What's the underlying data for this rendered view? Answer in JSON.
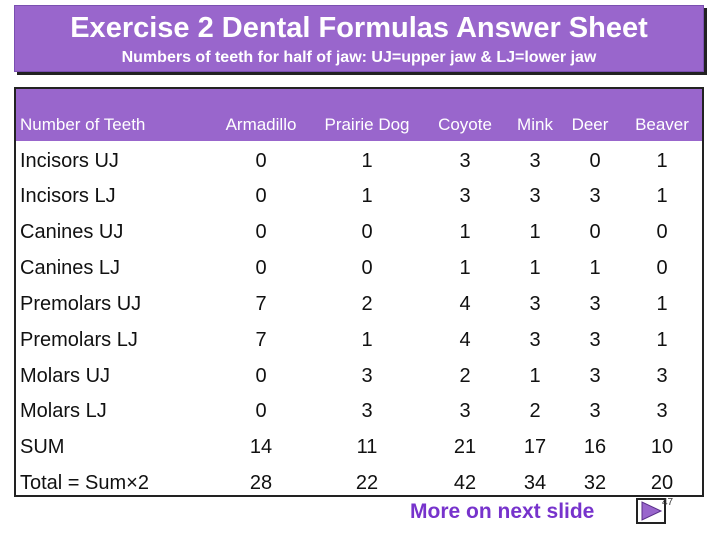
{
  "header": {
    "title": "Exercise 2 Dental Formulas Answer Sheet",
    "subtitle": "Numbers of teeth for half of jaw: UJ=upper jaw & LJ=lower jaw"
  },
  "table": {
    "columns": [
      "Number of Teeth",
      "Armadillo",
      "Prairie Dog",
      "Coyote",
      "Mink",
      "Deer",
      "Beaver"
    ],
    "rows": [
      {
        "label": "Incisors UJ",
        "values": [
          "0",
          "1",
          "3",
          "3",
          "0",
          "1"
        ]
      },
      {
        "label": "Incisors LJ",
        "values": [
          "0",
          "1",
          "3",
          "3",
          "3",
          "1"
        ]
      },
      {
        "label": "Canines UJ",
        "values": [
          "0",
          "0",
          "1",
          "1",
          "0",
          "0"
        ]
      },
      {
        "label": "Canines LJ",
        "values": [
          "0",
          "0",
          "1",
          "1",
          "1",
          "0"
        ]
      },
      {
        "label": "Premolars UJ",
        "values": [
          "7",
          "2",
          "4",
          "3",
          "3",
          "1"
        ]
      },
      {
        "label": "Premolars LJ",
        "values": [
          "7",
          "1",
          "4",
          "3",
          "3",
          "1"
        ]
      },
      {
        "label": "Molars UJ",
        "values": [
          "0",
          "3",
          "2",
          "1",
          "3",
          "3"
        ]
      },
      {
        "label": "Molars LJ",
        "values": [
          "0",
          "3",
          "3",
          "2",
          "3",
          "3"
        ]
      },
      {
        "label": "SUM",
        "values": [
          "14",
          "11",
          "21",
          "17",
          "16",
          "10"
        ]
      },
      {
        "label": "Total = Sum×2",
        "values": [
          "28",
          "22",
          "42",
          "34",
          "32",
          "20"
        ]
      }
    ]
  },
  "footer": {
    "link_text": "More on next slide",
    "page_number": "47",
    "icon": "play-next-icon"
  },
  "colors": {
    "accent": "#9966cc",
    "link": "#7733cc"
  }
}
